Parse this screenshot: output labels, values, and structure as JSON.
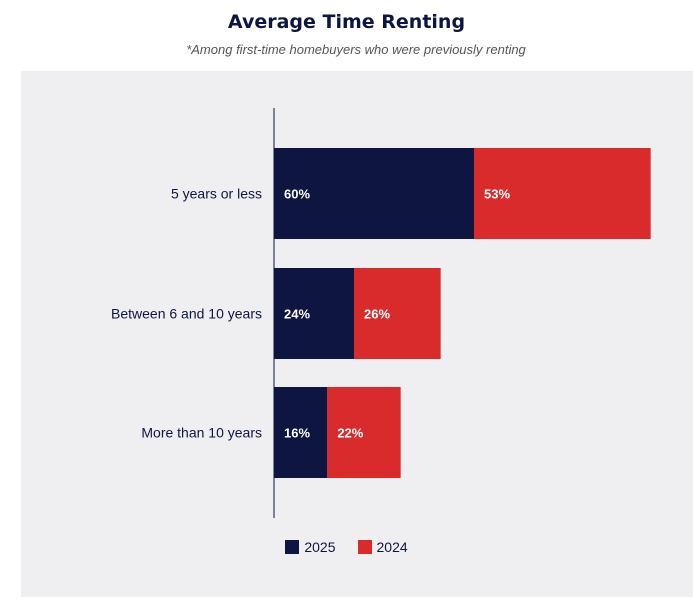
{
  "chart_data": {
    "type": "bar",
    "orientation": "horizontal",
    "stacked": true,
    "title": "Average Time Renting",
    "subtitle": "*Among first-time homebuyers who were previously renting",
    "categories": [
      "5 years or less",
      "Between 6 and 10 years",
      "More than 10 years"
    ],
    "series": [
      {
        "name": "2025",
        "values": [
          60,
          24,
          16
        ],
        "color": "#0e1540"
      },
      {
        "name": "2024",
        "values": [
          53,
          26,
          22
        ],
        "color": "#d92b2b"
      }
    ],
    "value_suffix": "%",
    "legend_position": "bottom",
    "grid": false,
    "background": "#efeff1"
  }
}
